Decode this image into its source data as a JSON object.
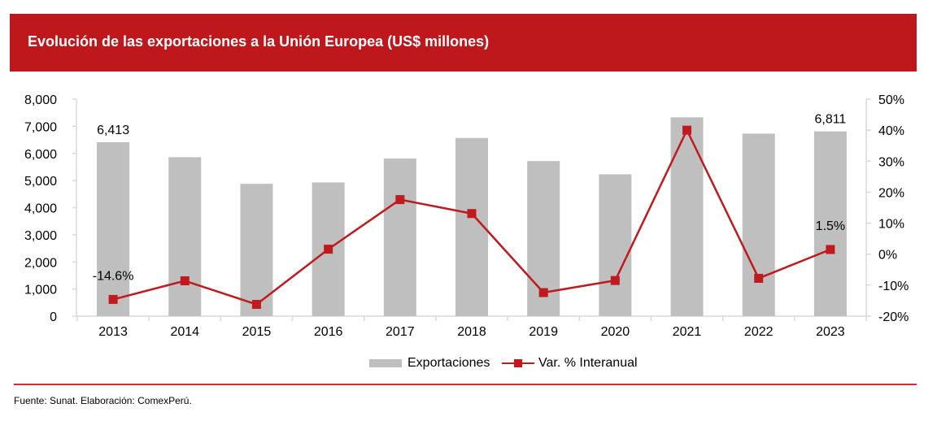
{
  "header": {
    "title": "Evolución de las exportaciones a la Unión Europea (US$ millones)"
  },
  "colors": {
    "header_bg": "#BE181C",
    "bar": "#BFBFBF",
    "line": "#C0191E",
    "axis": "#D9D9D9",
    "footer_rule": "#D22E35"
  },
  "chart_data": {
    "type": "bar",
    "title": "Evolución de las exportaciones a la Unión Europea (US$ millones)",
    "categories": [
      "2013",
      "2014",
      "2015",
      "2016",
      "2017",
      "2018",
      "2019",
      "2020",
      "2021",
      "2022",
      "2023"
    ],
    "series": [
      {
        "name": "Exportaciones",
        "type": "bar",
        "axis": "left",
        "values": [
          6413,
          5860,
          4880,
          4930,
          5810,
          6570,
          5720,
          5230,
          7330,
          6730,
          6811
        ]
      },
      {
        "name": "Var. % Interanual",
        "type": "line",
        "axis": "right",
        "values": [
          -14.6,
          -8.6,
          -16.2,
          1.6,
          17.6,
          13.1,
          -12.4,
          -8.5,
          40.0,
          -7.8,
          1.5
        ]
      }
    ],
    "data_labels": [
      {
        "series": 0,
        "index": 0,
        "text": "6,413"
      },
      {
        "series": 0,
        "index": 10,
        "text": "6,811"
      },
      {
        "series": 1,
        "index": 0,
        "text": "-14.6%"
      },
      {
        "series": 1,
        "index": 10,
        "text": "1.5%"
      }
    ],
    "left_axis": {
      "ylim": [
        0,
        8000
      ],
      "ticks": [
        0,
        1000,
        2000,
        3000,
        4000,
        5000,
        6000,
        7000,
        8000
      ],
      "tick_labels": [
        "0",
        "1,000",
        "2,000",
        "3,000",
        "4,000",
        "5,000",
        "6,000",
        "7,000",
        "8,000"
      ]
    },
    "right_axis": {
      "ylim": [
        -20,
        50
      ],
      "ticks": [
        -20,
        -10,
        0,
        10,
        20,
        30,
        40,
        50
      ],
      "tick_labels": [
        "-20%",
        "-10%",
        "0%",
        "10%",
        "20%",
        "30%",
        "40%",
        "50%"
      ]
    },
    "xlabel": "",
    "ylabel": "",
    "grid": false,
    "legend": {
      "position": "bottom",
      "entries": [
        "Exportaciones",
        "Var. % Interanual"
      ]
    }
  },
  "footer": {
    "source": "Fuente: Sunat. Elaboración: ComexPerú."
  }
}
